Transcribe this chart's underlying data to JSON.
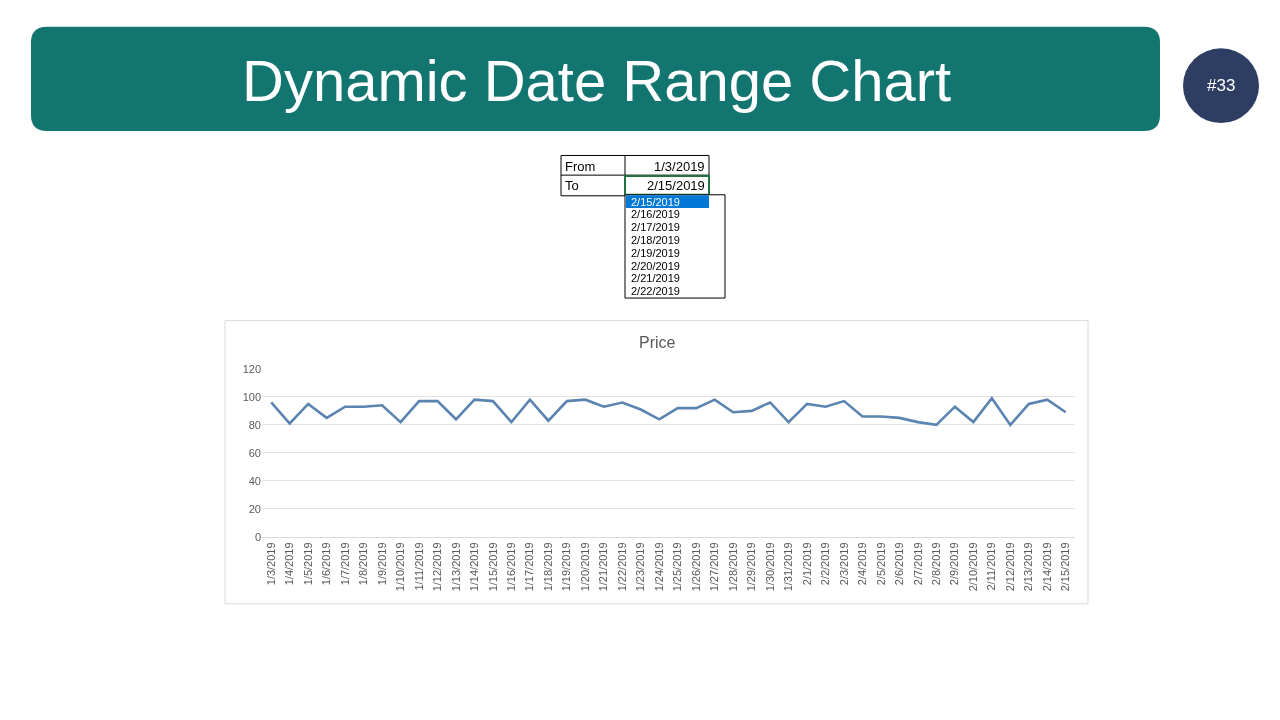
{
  "chart_data": {
    "type": "line",
    "title": "Price",
    "categories": [
      "1/3/2019",
      "1/4/2019",
      "1/5/2019",
      "1/6/2019",
      "1/7/2019",
      "1/8/2019",
      "1/9/2019",
      "1/10/2019",
      "1/11/2019",
      "1/12/2019",
      "1/13/2019",
      "1/14/2019",
      "1/15/2019",
      "1/16/2019",
      "1/17/2019",
      "1/18/2019",
      "1/19/2019",
      "1/20/2019",
      "1/21/2019",
      "1/22/2019",
      "1/23/2019",
      "1/24/2019",
      "1/25/2019",
      "1/26/2019",
      "1/27/2019",
      "1/28/2019",
      "1/29/2019",
      "1/30/2019",
      "1/31/2019",
      "2/1/2019",
      "2/2/2019",
      "2/3/2019",
      "2/4/2019",
      "2/5/2019",
      "2/6/2019",
      "2/7/2019",
      "2/8/2019",
      "2/9/2019",
      "2/10/2019",
      "2/11/2019",
      "2/12/2019",
      "2/13/2019",
      "2/14/2019",
      "2/15/2019"
    ],
    "series": [
      {
        "color": "#5b84b1",
        "values": [
          96,
          81,
          95,
          85,
          93,
          93,
          94,
          82,
          97,
          97,
          84,
          98,
          97,
          82,
          98,
          83,
          97,
          98,
          93,
          96,
          91,
          84,
          92,
          92,
          98,
          89,
          90,
          96,
          82,
          95,
          93,
          97,
          86,
          86,
          85,
          82,
          80,
          93,
          82,
          99,
          80,
          95,
          98,
          89
        ]
      }
    ],
    "ylim": [
      0,
      120
    ],
    "yticks": [
      0,
      20,
      40,
      60,
      80,
      100,
      120
    ],
    "grid": "y",
    "marker": "none",
    "line_style": "solid",
    "annotations": [
      "Dynamic Date Range Chart",
      "#33",
      "From",
      "1/3/2019",
      "To",
      "2/15/2019",
      "2/15/2019",
      "2/16/2019",
      "2/17/2019",
      "2/18/2019",
      "2/19/2019",
      "2/20/2019",
      "2/21/2019",
      "2/22/2019"
    ]
  }
}
